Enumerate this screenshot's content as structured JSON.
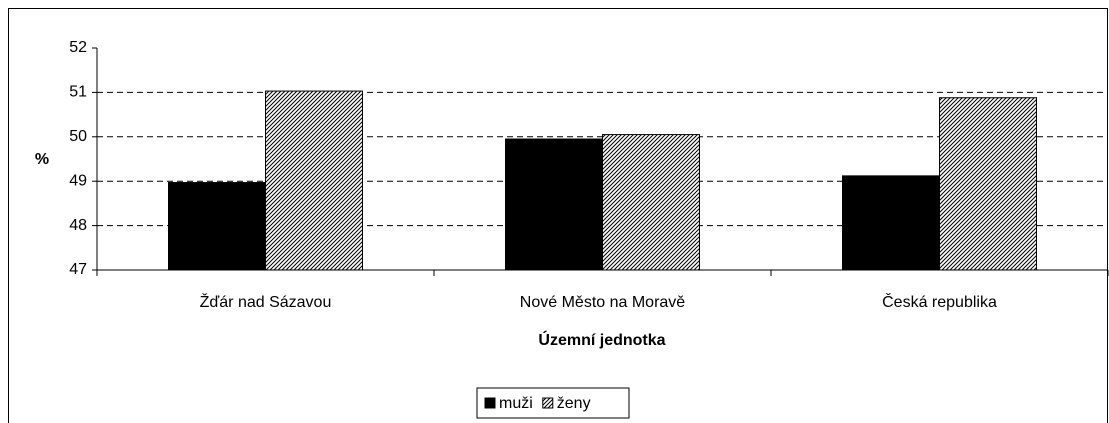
{
  "chart_data": {
    "type": "bar",
    "x_label": "Územní jednotka",
    "y_label": "%",
    "categories": [
      "Žďár nad Sázavou",
      "Nové Město na Moravě",
      "Česká republika"
    ],
    "series": [
      {
        "name": "muži",
        "color": "#000000",
        "values": [
          48.97,
          49.95,
          49.12
        ]
      },
      {
        "name": "ženy",
        "color": "#000000",
        "pattern": "hatch",
        "values": [
          51.03,
          50.05,
          50.88
        ]
      }
    ],
    "ylim": [
      47,
      52
    ],
    "yticks": [
      47,
      48,
      49,
      50,
      51,
      52
    ],
    "grid": true,
    "legend": "bottom"
  }
}
